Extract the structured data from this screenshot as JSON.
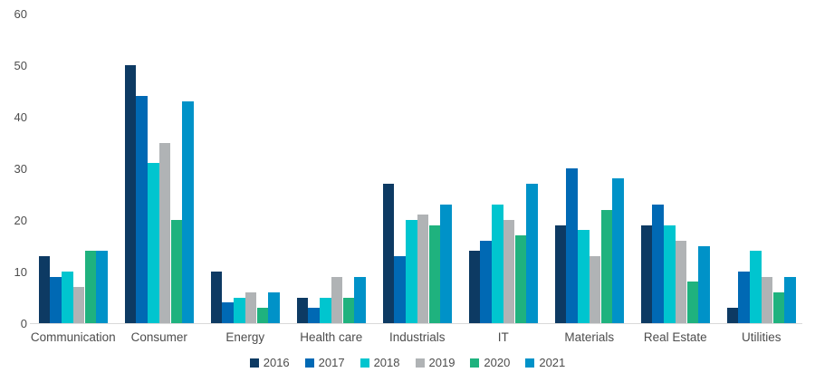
{
  "chart_data": {
    "type": "bar",
    "title": "",
    "xlabel": "",
    "ylabel": "",
    "ylim": [
      0,
      60
    ],
    "yticks": [
      0,
      10,
      20,
      30,
      40,
      50,
      60
    ],
    "grid": false,
    "legend_position": "bottom-center",
    "categories": [
      "Communication",
      "Consumer",
      "Energy",
      "Health care",
      "Industrials",
      "IT",
      "Materials",
      "Real Estate",
      "Utilities"
    ],
    "series": [
      {
        "name": "2016",
        "color": "#0d3a63",
        "values": [
          13,
          50,
          10,
          5,
          27,
          14,
          19,
          19,
          3
        ]
      },
      {
        "name": "2017",
        "color": "#0069b4",
        "values": [
          9,
          44,
          4,
          3,
          13,
          16,
          30,
          23,
          10
        ]
      },
      {
        "name": "2018",
        "color": "#00c5cf",
        "values": [
          10,
          31,
          5,
          5,
          20,
          23,
          18,
          19,
          14
        ]
      },
      {
        "name": "2019",
        "color": "#b0b3b5",
        "values": [
          7,
          35,
          6,
          9,
          21,
          20,
          13,
          16,
          9
        ]
      },
      {
        "name": "2020",
        "color": "#1fb27e",
        "values": [
          14,
          20,
          3,
          5,
          19,
          17,
          22,
          8,
          6
        ]
      },
      {
        "name": "2021",
        "color": "#0092c8",
        "values": [
          14,
          43,
          6,
          9,
          23,
          27,
          28,
          15,
          9
        ]
      }
    ]
  },
  "colors": {
    "axis_line": "#d9d9d9",
    "label_text": "#4d4d4d",
    "background": "#ffffff"
  }
}
